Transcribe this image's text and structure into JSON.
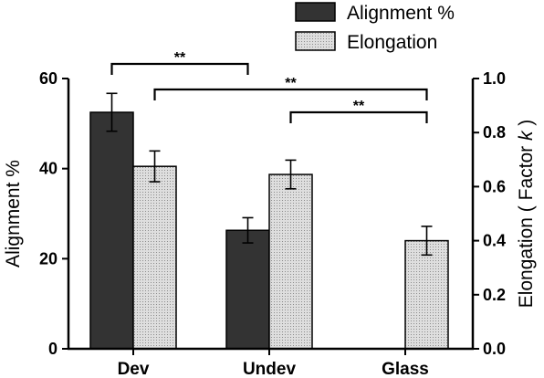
{
  "chart_data": {
    "type": "bar",
    "categories": [
      "Dev",
      "Undev",
      "Glass"
    ],
    "series": [
      {
        "name": "Alignment %",
        "axis": "left",
        "values": [
          52.5,
          26.3,
          null
        ],
        "errors": [
          4.2,
          2.8,
          null
        ],
        "color": "#333333",
        "pattern": "solid"
      },
      {
        "name": "Elongation",
        "axis": "right",
        "values": [
          0.675,
          0.645,
          0.4
        ],
        "errors": [
          0.057,
          0.053,
          0.053
        ],
        "color": "#d9d9d9",
        "pattern": "dotted"
      }
    ],
    "ylabel": "Alignment %",
    "ylim": [
      0,
      60
    ],
    "yticks": [
      "0",
      "20",
      "40",
      "60"
    ],
    "y2label_prefix": "Elongation ( Factor ",
    "y2label_var": "k",
    "y2label_suffix": " )",
    "y2lim": [
      0,
      1.0
    ],
    "y2ticks": [
      "0.0",
      "0.2",
      "0.4",
      "0.6",
      "0.8",
      "1.0"
    ],
    "legend_position": "top-right",
    "significance": [
      {
        "label": "**",
        "from": "Dev Alignment %",
        "to": "Undev Alignment %"
      },
      {
        "label": "**",
        "from": "Dev Elongation",
        "to": "Glass Elongation"
      },
      {
        "label": "**",
        "from": "Undev Elongation",
        "to": "Glass Elongation"
      }
    ],
    "grid": false
  }
}
